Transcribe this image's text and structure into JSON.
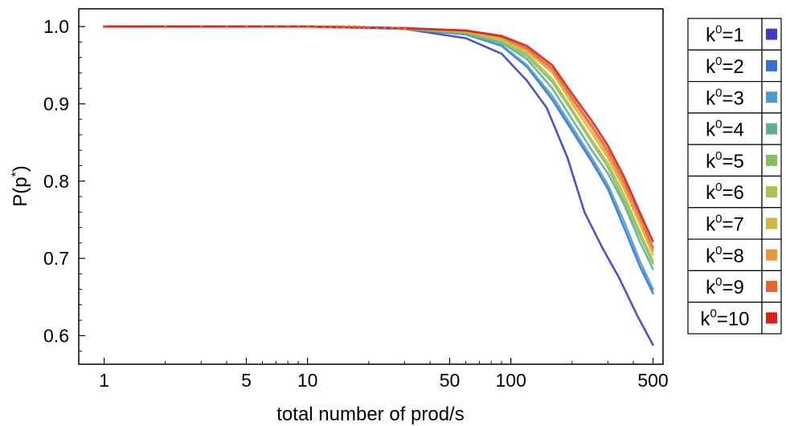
{
  "chart_data": {
    "type": "line",
    "title": "",
    "xlabel": "total number of prod/s",
    "ylabel": "P(p*)",
    "xscale": "log",
    "xlim": [
      0.75,
      560
    ],
    "ylim": [
      0.563,
      1.023
    ],
    "xticks": [
      {
        "value": 1,
        "label": "1"
      },
      {
        "value": 5,
        "label": "5"
      },
      {
        "value": 10,
        "label": "10"
      },
      {
        "value": 50,
        "label": "50"
      },
      {
        "value": 100,
        "label": "100"
      },
      {
        "value": 500,
        "label": "500"
      }
    ],
    "yticks": [
      {
        "value": 0.6,
        "label": "0.6"
      },
      {
        "value": 0.7,
        "label": "0.7"
      },
      {
        "value": 0.8,
        "label": "0.8"
      },
      {
        "value": 0.9,
        "label": "0.9"
      },
      {
        "value": 1.0,
        "label": "1.0"
      }
    ],
    "legend_position": "right",
    "series": [
      {
        "name": "k",
        "sup": "0",
        "suffix": "=1",
        "color": "#3d3fc0",
        "x": [
          1,
          10,
          30,
          60,
          90,
          120,
          150,
          190,
          230,
          280,
          340,
          420,
          500
        ],
        "y": [
          1.0,
          1.0,
          0.997,
          0.985,
          0.965,
          0.93,
          0.895,
          0.83,
          0.76,
          0.715,
          0.675,
          0.625,
          0.588
        ]
      },
      {
        "name": "k",
        "sup": "0",
        "suffix": "=2",
        "color": "#3771d4",
        "x": [
          1,
          10,
          30,
          60,
          90,
          120,
          160,
          200,
          250,
          300,
          360,
          430,
          500
        ],
        "y": [
          1.0,
          1.0,
          0.997,
          0.99,
          0.975,
          0.948,
          0.905,
          0.865,
          0.825,
          0.79,
          0.74,
          0.69,
          0.655
        ]
      },
      {
        "name": "k",
        "sup": "0",
        "suffix": "=3",
        "color": "#4b9ec8",
        "x": [
          1,
          10,
          30,
          60,
          90,
          120,
          160,
          200,
          250,
          300,
          360,
          430,
          500
        ],
        "y": [
          1.0,
          1.0,
          0.997,
          0.99,
          0.976,
          0.95,
          0.91,
          0.87,
          0.83,
          0.795,
          0.748,
          0.697,
          0.66
        ]
      },
      {
        "name": "k",
        "sup": "0",
        "suffix": "=4",
        "color": "#62ab9d",
        "x": [
          1,
          10,
          30,
          60,
          90,
          120,
          160,
          200,
          250,
          300,
          360,
          430,
          500
        ],
        "y": [
          1.0,
          1.0,
          0.998,
          0.991,
          0.979,
          0.958,
          0.92,
          0.88,
          0.84,
          0.81,
          0.77,
          0.722,
          0.686
        ]
      },
      {
        "name": "k",
        "sup": "0",
        "suffix": "=5",
        "color": "#86bd63",
        "x": [
          1,
          10,
          30,
          60,
          90,
          120,
          160,
          200,
          250,
          300,
          360,
          430,
          500
        ],
        "y": [
          1.0,
          1.0,
          0.998,
          0.992,
          0.98,
          0.962,
          0.928,
          0.89,
          0.85,
          0.818,
          0.775,
          0.73,
          0.693
        ]
      },
      {
        "name": "k",
        "sup": "0",
        "suffix": "=6",
        "color": "#adc14a",
        "x": [
          1,
          10,
          30,
          60,
          90,
          120,
          160,
          200,
          250,
          300,
          360,
          430,
          500
        ],
        "y": [
          1.0,
          1.0,
          0.998,
          0.993,
          0.983,
          0.965,
          0.932,
          0.893,
          0.853,
          0.823,
          0.782,
          0.735,
          0.697
        ]
      },
      {
        "name": "k",
        "sup": "0",
        "suffix": "=7",
        "color": "#d4b640",
        "x": [
          1,
          10,
          30,
          60,
          90,
          120,
          160,
          200,
          250,
          300,
          360,
          430,
          500
        ],
        "y": [
          1.0,
          1.0,
          0.998,
          0.994,
          0.985,
          0.968,
          0.94,
          0.9,
          0.862,
          0.83,
          0.79,
          0.745,
          0.705
        ]
      },
      {
        "name": "k",
        "sup": "0",
        "suffix": "=8",
        "color": "#e8953a",
        "x": [
          1,
          10,
          30,
          60,
          90,
          120,
          160,
          200,
          250,
          300,
          360,
          430,
          500
        ],
        "y": [
          1.0,
          1.0,
          0.998,
          0.994,
          0.986,
          0.97,
          0.943,
          0.905,
          0.868,
          0.835,
          0.795,
          0.75,
          0.71
        ]
      },
      {
        "name": "k",
        "sup": "0",
        "suffix": "=9",
        "color": "#e5662e",
        "x": [
          1,
          10,
          30,
          60,
          90,
          120,
          160,
          200,
          250,
          300,
          360,
          430,
          500
        ],
        "y": [
          1.0,
          1.0,
          0.998,
          0.995,
          0.987,
          0.972,
          0.946,
          0.908,
          0.872,
          0.84,
          0.8,
          0.755,
          0.714
        ]
      },
      {
        "name": "k",
        "sup": "0",
        "suffix": "=10",
        "color": "#d92020",
        "x": [
          1,
          10,
          30,
          60,
          90,
          120,
          160,
          200,
          250,
          300,
          360,
          430,
          500
        ],
        "y": [
          1.0,
          1.0,
          0.998,
          0.995,
          0.988,
          0.975,
          0.95,
          0.913,
          0.878,
          0.846,
          0.806,
          0.76,
          0.722
        ]
      }
    ],
    "dotted_series": {
      "color": "#e5662e",
      "x": [
        1,
        2,
        3,
        4,
        5,
        6,
        7,
        8,
        9,
        10,
        11,
        12,
        13,
        14,
        15,
        16,
        17,
        18,
        19,
        20,
        22,
        24,
        26,
        28,
        30
      ],
      "y": [
        1.0,
        1.0,
        1.0,
        1.0,
        1.0,
        1.0,
        1.0,
        1.0,
        1.0,
        1.0,
        1.0,
        1.0,
        1.0,
        1.0,
        1.0,
        1.0,
        1.0,
        0.9995,
        0.9995,
        0.999,
        0.999,
        0.9985,
        0.998,
        0.998,
        0.9975
      ]
    }
  }
}
